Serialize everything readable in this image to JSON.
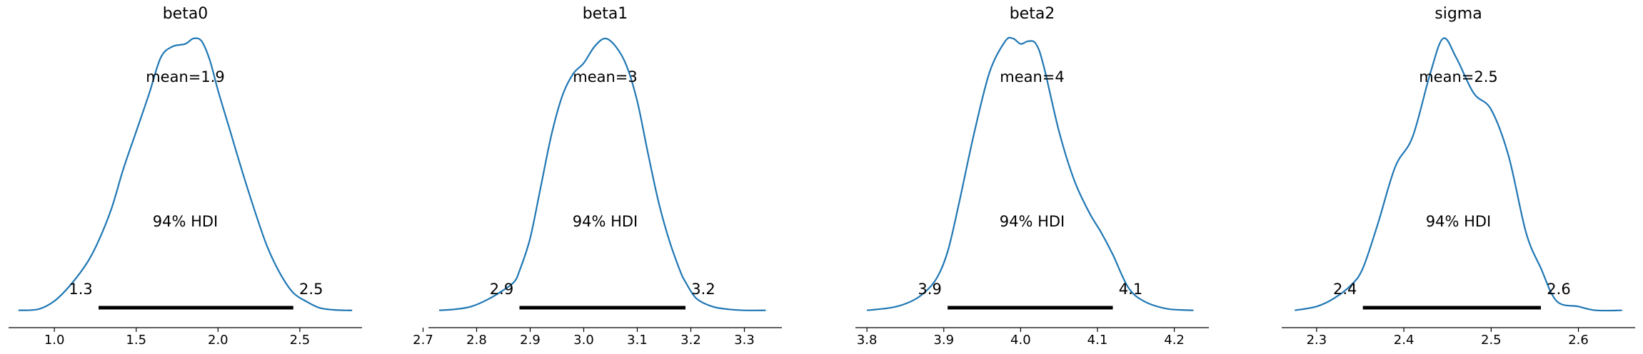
{
  "chart_data": [
    {
      "type": "area",
      "title": "beta0",
      "mean_label": "mean=1.9",
      "hdi_label": "94% HDI",
      "hdi_low_label": "1.3",
      "hdi_high_label": "2.5",
      "hdi": [
        1.27,
        2.46
      ],
      "xlim": [
        0.72,
        2.88
      ],
      "xticks": [
        "1.0",
        "1.5",
        "2.0",
        "2.5"
      ],
      "xtick_values": [
        1.0,
        1.5,
        2.0,
        2.5
      ],
      "density_x": [
        0.78,
        0.9,
        1.0,
        1.1,
        1.2,
        1.27,
        1.35,
        1.42,
        1.5,
        1.58,
        1.65,
        1.72,
        1.8,
        1.85,
        1.9,
        1.95,
        2.0,
        2.07,
        2.15,
        2.23,
        2.3,
        2.38,
        2.46,
        2.55,
        2.62,
        2.7,
        2.78,
        2.82
      ],
      "density_y": [
        0.006,
        0.01,
        0.04,
        0.1,
        0.18,
        0.26,
        0.38,
        0.52,
        0.66,
        0.8,
        0.93,
        0.97,
        0.98,
        1.0,
        0.99,
        0.92,
        0.81,
        0.67,
        0.51,
        0.36,
        0.24,
        0.14,
        0.07,
        0.035,
        0.015,
        0.008,
        0.006,
        0.006
      ]
    },
    {
      "type": "area",
      "title": "beta1",
      "mean_label": "mean=3",
      "hdi_label": "94% HDI",
      "hdi_low_label": "2.9",
      "hdi_high_label": "3.2",
      "hdi": [
        2.88,
        3.19
      ],
      "xlim": [
        2.71,
        3.37
      ],
      "xticks": [
        "2.7",
        "2.8",
        "2.9",
        "3.0",
        "3.1",
        "3.2",
        "3.3"
      ],
      "xtick_values": [
        2.7,
        2.8,
        2.9,
        3.0,
        3.1,
        3.2,
        3.3
      ],
      "density_x": [
        2.73,
        2.76,
        2.79,
        2.82,
        2.85,
        2.87,
        2.88,
        2.9,
        2.92,
        2.94,
        2.96,
        2.98,
        3.0,
        3.02,
        3.04,
        3.06,
        3.08,
        3.1,
        3.12,
        3.14,
        3.16,
        3.18,
        3.19,
        3.21,
        3.24,
        3.27,
        3.3,
        3.34
      ],
      "density_y": [
        0.006,
        0.01,
        0.02,
        0.045,
        0.08,
        0.11,
        0.15,
        0.27,
        0.46,
        0.65,
        0.79,
        0.87,
        0.91,
        0.97,
        1.0,
        0.97,
        0.9,
        0.77,
        0.58,
        0.4,
        0.26,
        0.15,
        0.11,
        0.05,
        0.02,
        0.01,
        0.006,
        0.006
      ]
    },
    {
      "type": "area",
      "title": "beta2",
      "mean_label": "mean=4",
      "hdi_label": "94% HDI",
      "hdi_low_label": "3.9",
      "hdi_high_label": "4.1",
      "hdi": [
        3.905,
        4.12
      ],
      "xlim": [
        3.785,
        4.245
      ],
      "xticks": [
        "3.8",
        "3.9",
        "4.0",
        "4.1",
        "4.2"
      ],
      "xtick_values": [
        3.8,
        3.9,
        4.0,
        4.1,
        4.2
      ],
      "density_x": [
        3.8,
        3.83,
        3.85,
        3.87,
        3.89,
        3.905,
        3.92,
        3.94,
        3.96,
        3.98,
        3.99,
        4.0,
        4.01,
        4.02,
        4.03,
        4.05,
        4.07,
        4.09,
        4.105,
        4.12,
        4.14,
        4.16,
        4.19,
        4.225
      ],
      "density_y": [
        0.006,
        0.015,
        0.03,
        0.06,
        0.12,
        0.22,
        0.4,
        0.66,
        0.88,
        0.99,
        1.0,
        0.98,
        0.99,
        0.98,
        0.9,
        0.66,
        0.48,
        0.36,
        0.29,
        0.21,
        0.09,
        0.04,
        0.012,
        0.006
      ]
    },
    {
      "type": "area",
      "title": "sigma",
      "mean_label": "mean=2.5",
      "hdi_label": "94% HDI",
      "hdi_low_label": "2.4",
      "hdi_high_label": "2.6",
      "hdi": [
        2.353,
        2.557
      ],
      "xlim": [
        2.26,
        2.665
      ],
      "xticks": [
        "2.3",
        "2.4",
        "2.5",
        "2.6"
      ],
      "xtick_values": [
        2.3,
        2.4,
        2.5,
        2.6
      ],
      "density_x": [
        2.275,
        2.3,
        2.32,
        2.34,
        2.353,
        2.37,
        2.39,
        2.41,
        2.43,
        2.445,
        2.46,
        2.48,
        2.5,
        2.52,
        2.54,
        2.557,
        2.575,
        2.6,
        2.62,
        2.65
      ],
      "density_y": [
        0.006,
        0.02,
        0.05,
        0.1,
        0.16,
        0.32,
        0.53,
        0.64,
        0.87,
        1.0,
        0.93,
        0.8,
        0.74,
        0.57,
        0.29,
        0.16,
        0.04,
        0.02,
        0.006,
        0.006
      ]
    }
  ],
  "style": {
    "line_color": "#1f77b4",
    "hdi_color": "#000000",
    "axis_color": "#000000"
  }
}
